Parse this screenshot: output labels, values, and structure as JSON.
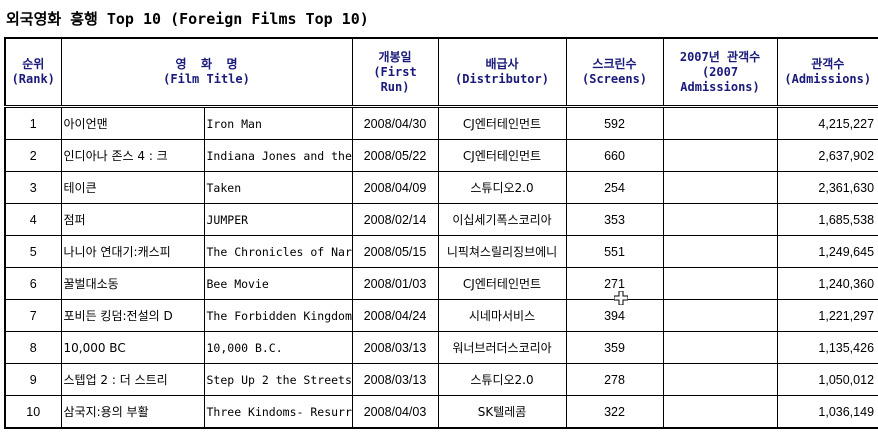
{
  "title": "외국영화 흥행 Top 10 (Foreign Films Top 10)",
  "headers": {
    "rank_ko": "순위",
    "rank_en": "(Rank)",
    "film_ko": "영  화  명",
    "film_en": "(Film Title)",
    "run_ko": "개봉일",
    "run_en1": "(First",
    "run_en2": "Run)",
    "dist_ko": "배급사",
    "dist_en": "(Distributor)",
    "screens_ko": "스크린수",
    "screens_en": "(Screens)",
    "adm2007_ko": "2007년 관객수",
    "adm2007_en1": "(2007",
    "adm2007_en2": "Admissions)",
    "adm_ko": "관객수",
    "adm_en": "(Admissions)"
  },
  "rows": [
    {
      "rank": "1",
      "title_ko": "아이언맨",
      "title_en": "Iron Man",
      "date": "2008/04/30",
      "distributor": "CJ엔터테인먼트",
      "screens": "592",
      "adm2007": "",
      "admissions": "4,215,227"
    },
    {
      "rank": "2",
      "title_ko": "인디아나 존스 4 : 크",
      "title_en": "Indiana Jones and the",
      "date": "2008/05/22",
      "distributor": "CJ엔터테인먼트",
      "screens": "660",
      "adm2007": "",
      "admissions": "2,637,902"
    },
    {
      "rank": "3",
      "title_ko": "테이큰",
      "title_en": "Taken",
      "date": "2008/04/09",
      "distributor": "스튜디오2.0",
      "screens": "254",
      "adm2007": "",
      "admissions": "2,361,630"
    },
    {
      "rank": "4",
      "title_ko": "점퍼",
      "title_en": "JUMPER",
      "date": "2008/02/14",
      "distributor": "이십세기폭스코리아",
      "screens": "353",
      "adm2007": "",
      "admissions": "1,685,538"
    },
    {
      "rank": "5",
      "title_ko": "나니아 연대기:캐스피",
      "title_en": "The Chronicles of Nar",
      "date": "2008/05/15",
      "distributor": "니픽쳐스릴리징브에니",
      "screens": "551",
      "adm2007": "",
      "admissions": "1,249,645"
    },
    {
      "rank": "6",
      "title_ko": "꿀벌대소동",
      "title_en": "Bee Movie",
      "date": "2008/01/03",
      "distributor": "CJ엔터테인먼트",
      "screens": "271",
      "adm2007": "",
      "admissions": "1,240,360"
    },
    {
      "rank": "7",
      "title_ko": "포비든 킹덤:전설의 D",
      "title_en": "The Forbidden Kingdom",
      "date": "2008/04/24",
      "distributor": "시네마서비스",
      "screens": "394",
      "adm2007": "",
      "admissions": "1,221,297"
    },
    {
      "rank": "8",
      "title_ko": "10,000 BC",
      "title_en": "10,000 B.C.",
      "date": "2008/03/13",
      "distributor": "워너브러더스코리아",
      "screens": "359",
      "adm2007": "",
      "admissions": "1,135,426"
    },
    {
      "rank": "9",
      "title_ko": "스텝업 2 : 더 스트리",
      "title_en": "Step Up 2 the Streets",
      "date": "2008/03/13",
      "distributor": "스튜디오2.0",
      "screens": "278",
      "adm2007": "",
      "admissions": "1,050,012"
    },
    {
      "rank": "10",
      "title_ko": "삼국지:용의 부활",
      "title_en": "Three Kindoms- Resurr",
      "date": "2008/04/03",
      "distributor": "SK텔레콤",
      "screens": "322",
      "adm2007": "",
      "admissions": "1,036,149"
    }
  ]
}
